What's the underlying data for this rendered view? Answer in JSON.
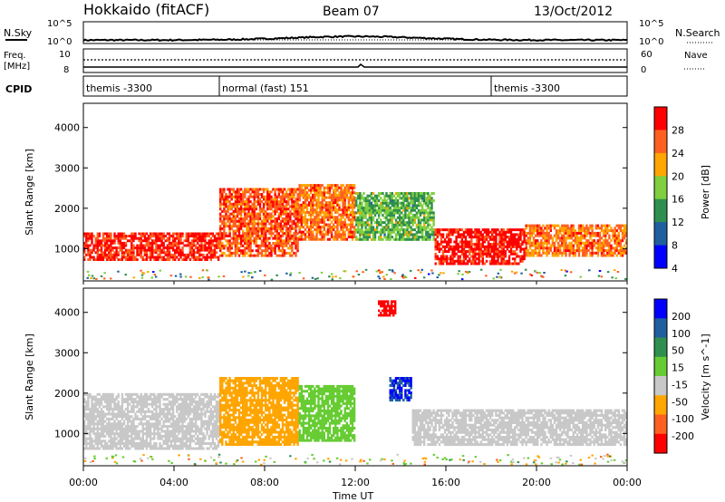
{
  "header": {
    "station": "Hokkaido (fitACF)",
    "beam": "Beam 07",
    "date": "13/Oct/2012"
  },
  "noise_panel": {
    "left_label": "N.Sky",
    "right_label": "N.Search",
    "ticks_left": [
      "10^5",
      "10^0"
    ],
    "ticks_right": [
      "10^5",
      "10^0"
    ]
  },
  "freq_panel": {
    "left_label_1": "Freq.",
    "left_label_2": "[MHz]",
    "right_label": "Nave",
    "ticks_left": [
      "10",
      "8"
    ],
    "ticks_right": [
      "60",
      "0"
    ]
  },
  "cpid": {
    "label": "CPID",
    "segments": [
      {
        "text": "themis -3300",
        "start_hour": 0
      },
      {
        "text": "normal (fast) 151",
        "start_hour": 6
      },
      {
        "text": "themis -3300",
        "start_hour": 18
      }
    ]
  },
  "power_colorbar": {
    "label": "Power [dB]",
    "ticks": [
      "28",
      "24",
      "20",
      "16",
      "12",
      "8",
      "4"
    ],
    "colors": [
      "#0000ff",
      "#1f5fa0",
      "#2f8f4f",
      "#7fcf3f",
      "#ffa500",
      "#ff6020",
      "#ff0000"
    ]
  },
  "velocity_colorbar": {
    "label": "Velocity [m s^-1]",
    "ticks": [
      "200",
      "100",
      "50",
      "15",
      "-15",
      "-50",
      "-100",
      "-200"
    ],
    "colors": [
      "#0000ff",
      "#1f5fa0",
      "#2f8f4f",
      "#66cc33",
      "#c8c8c8",
      "#ffa500",
      "#ff6020",
      "#ff0000"
    ]
  },
  "chart_data": {
    "type": "heatmap",
    "xlabel": "Time UT",
    "ylabel": "Slant Range [km]",
    "x_ticks": [
      "00:00",
      "04:00",
      "08:00",
      "12:00",
      "16:00",
      "20:00",
      "00:00"
    ],
    "y_ticks": [
      "1000",
      "2000",
      "3000",
      "4000"
    ],
    "xlim_hours": [
      0,
      24
    ],
    "ylim_km": [
      200,
      4600
    ],
    "panels": [
      {
        "name": "power",
        "regions": [
          {
            "t0": 0,
            "t1": 6,
            "r0": 700,
            "r1": 1400,
            "value": 28
          },
          {
            "t0": 6,
            "t1": 9.5,
            "r0": 800,
            "r1": 2500,
            "value": 26
          },
          {
            "t0": 9.5,
            "t1": 12,
            "r0": 1200,
            "r1": 2600,
            "value": 24
          },
          {
            "t0": 12,
            "t1": 15.5,
            "r0": 1200,
            "r1": 2400,
            "value": 14
          },
          {
            "t0": 15.5,
            "t1": 19.5,
            "r0": 600,
            "r1": 1500,
            "value": 30
          },
          {
            "t0": 19.5,
            "t1": 24,
            "r0": 800,
            "r1": 1600,
            "value": 24
          }
        ]
      },
      {
        "name": "velocity",
        "regions": [
          {
            "t0": 0,
            "t1": 6,
            "r0": 600,
            "r1": 2000,
            "value": 0
          },
          {
            "t0": 6,
            "t1": 9.5,
            "r0": 700,
            "r1": 2400,
            "value": -40
          },
          {
            "t0": 9.5,
            "t1": 12,
            "r0": 800,
            "r1": 2200,
            "value": 30
          },
          {
            "t0": 13.5,
            "t1": 14.5,
            "r0": 1800,
            "r1": 2400,
            "value": 200
          },
          {
            "t0": 13,
            "t1": 13.8,
            "r0": 3900,
            "r1": 4300,
            "value": -200
          },
          {
            "t0": 14.5,
            "t1": 24,
            "r0": 700,
            "r1": 1600,
            "value": 0
          }
        ]
      }
    ]
  }
}
